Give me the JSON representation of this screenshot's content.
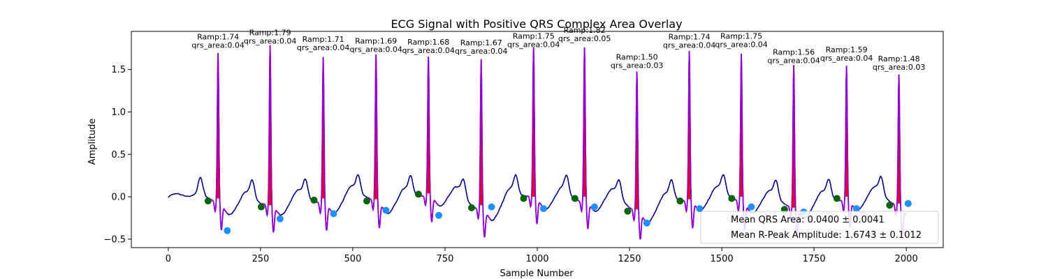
{
  "chart_data": {
    "type": "line",
    "title": "ECG Signal with Positive QRS Complex Area Overlay",
    "xlabel": "Sample Number",
    "ylabel": "Amplitude",
    "xlim": [
      -100,
      2100
    ],
    "ylim": [
      -0.6,
      1.95
    ],
    "xticks": [
      0,
      250,
      500,
      750,
      1000,
      1250,
      1500,
      1750,
      2000
    ],
    "yticks": [
      -0.5,
      0.0,
      0.5,
      1.0,
      1.5
    ],
    "grid": false,
    "colors": {
      "signal": "#00008b",
      "qrs_segment": "#9400d3",
      "qrs_fill": "#ff0000",
      "onset_marker": "#006400",
      "offset_marker": "#1e90ff"
    },
    "beats": [
      {
        "r_sample": 135,
        "r_amp": 1.74,
        "qrs_area": "0.04",
        "onset": [
          108,
          -0.05
        ],
        "offset": [
          160,
          -0.4
        ],
        "baseline": -0.02
      },
      {
        "r_sample": 276,
        "r_amp": 1.79,
        "qrs_area": "0.04",
        "onset": [
          252,
          -0.12
        ],
        "offset": [
          303,
          -0.26
        ],
        "baseline": -0.1
      },
      {
        "r_sample": 420,
        "r_amp": 1.71,
        "qrs_area": "0.04",
        "onset": [
          395,
          -0.04
        ],
        "offset": [
          448,
          -0.2
        ],
        "baseline": -0.02
      },
      {
        "r_sample": 563,
        "r_amp": 1.69,
        "qrs_area": "0.04",
        "onset": [
          538,
          -0.05
        ],
        "offset": [
          590,
          -0.16
        ],
        "baseline": -0.03
      },
      {
        "r_sample": 705,
        "r_amp": 1.68,
        "qrs_area": "0.04",
        "onset": [
          678,
          0.03
        ],
        "offset": [
          733,
          -0.22
        ],
        "baseline": 0.04
      },
      {
        "r_sample": 848,
        "r_amp": 1.67,
        "qrs_area": "0.04",
        "onset": [
          822,
          -0.13
        ],
        "offset": [
          876,
          -0.12
        ],
        "baseline": -0.1
      },
      {
        "r_sample": 990,
        "r_amp": 1.75,
        "qrs_area": "0.04",
        "onset": [
          963,
          -0.02
        ],
        "offset": [
          1017,
          -0.14
        ],
        "baseline": 0.0
      },
      {
        "r_sample": 1128,
        "r_amp": 1.82,
        "qrs_area": "0.05",
        "onset": [
          1102,
          -0.02
        ],
        "offset": [
          1155,
          -0.12
        ],
        "baseline": 0.0
      },
      {
        "r_sample": 1270,
        "r_amp": 1.5,
        "qrs_area": "0.03",
        "onset": [
          1245,
          -0.17
        ],
        "offset": [
          1297,
          -0.31
        ],
        "baseline": -0.15
      },
      {
        "r_sample": 1412,
        "r_amp": 1.74,
        "qrs_area": "0.04",
        "onset": [
          1387,
          -0.05
        ],
        "offset": [
          1440,
          -0.14
        ],
        "baseline": -0.03
      },
      {
        "r_sample": 1553,
        "r_amp": 1.75,
        "qrs_area": "0.04",
        "onset": [
          1527,
          -0.02
        ],
        "offset": [
          1580,
          -0.12
        ],
        "baseline": 0.0
      },
      {
        "r_sample": 1695,
        "r_amp": 1.56,
        "qrs_area": "0.04",
        "onset": [
          1670,
          -0.15
        ],
        "offset": [
          1722,
          -0.18
        ],
        "baseline": -0.13
      },
      {
        "r_sample": 1838,
        "r_amp": 1.59,
        "qrs_area": "0.04",
        "onset": [
          1812,
          -0.02
        ],
        "offset": [
          1865,
          -0.14
        ],
        "baseline": 0.0
      },
      {
        "r_sample": 1980,
        "r_amp": 1.48,
        "qrs_area": "0.03",
        "onset": [
          1955,
          -0.1
        ],
        "offset": [
          2005,
          -0.08
        ],
        "baseline": -0.08
      }
    ],
    "legend": {
      "placement": "lower-right",
      "entries": [
        "Mean QRS Area: 0.0400 ± 0.0041",
        "Mean R-Peak Amplitude: 1.6743 ± 0.1012"
      ]
    }
  }
}
